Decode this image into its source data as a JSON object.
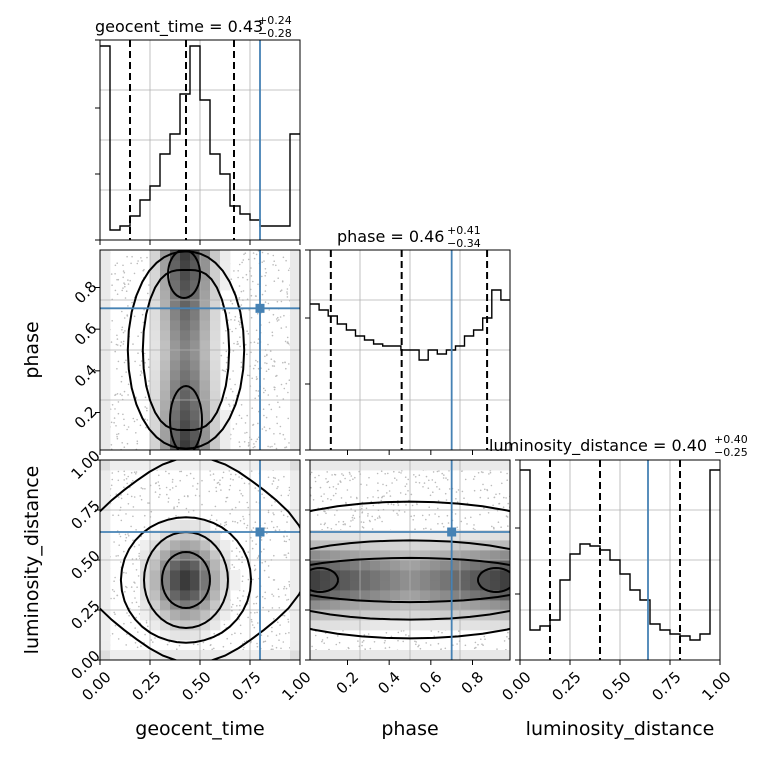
{
  "chart_data": {
    "type": "corner",
    "parameters": [
      "geocent_time",
      "phase",
      "luminosity_distance"
    ],
    "truths": [
      0.8,
      0.7,
      0.64
    ],
    "colors": {
      "truth": "#4682b4",
      "hist": "#000000",
      "contour": "#000000",
      "samples": "#bbbbbb"
    },
    "ranges": [
      [
        0.0,
        1.0
      ],
      [
        0.02,
        0.98
      ],
      [
        0.0,
        1.0
      ]
    ],
    "titles": [
      {
        "text": "geocent_time = 0.43",
        "plus": "+0.24",
        "minus": "−0.28"
      },
      {
        "text": "phase = 0.46",
        "plus": "+0.41",
        "minus": "−0.34"
      },
      {
        "text": "luminosity_distance = 0.40",
        "plus": "+0.40",
        "minus": "−0.25"
      }
    ],
    "quantiles": [
      [
        0.15,
        0.43,
        0.67
      ],
      [
        0.12,
        0.46,
        0.87
      ],
      [
        0.15,
        0.4,
        0.8
      ]
    ],
    "tick_labels": {
      "geocent_time": [
        "0.00",
        "0.25",
        "0.50",
        "0.75",
        "1.00"
      ],
      "phase": [
        "0.2",
        "0.4",
        "0.6",
        "0.8"
      ],
      "luminosity_distance": [
        "0.00",
        "0.25",
        "0.50",
        "0.75",
        "1.00"
      ]
    },
    "histograms": [
      {
        "name": "geocent_time",
        "values": [
          0.97,
          0.05,
          0.07,
          0.12,
          0.2,
          0.27,
          0.43,
          0.53,
          0.73,
          0.97,
          0.7,
          0.43,
          0.33,
          0.17,
          0.13,
          0.1,
          0.07,
          0.07,
          0.07,
          0.53
        ]
      },
      {
        "name": "phase",
        "values": [
          0.73,
          0.7,
          0.67,
          0.63,
          0.6,
          0.57,
          0.55,
          0.53,
          0.52,
          0.52,
          0.5,
          0.5,
          0.45,
          0.5,
          0.48,
          0.5,
          0.52,
          0.57,
          0.6,
          0.66,
          0.8,
          0.75
        ]
      },
      {
        "name": "luminosity_distance",
        "values": [
          0.95,
          0.15,
          0.17,
          0.2,
          0.4,
          0.53,
          0.58,
          0.57,
          0.55,
          0.5,
          0.43,
          0.35,
          0.3,
          0.18,
          0.15,
          0.13,
          0.12,
          0.1,
          0.13,
          0.95
        ]
      }
    ]
  }
}
